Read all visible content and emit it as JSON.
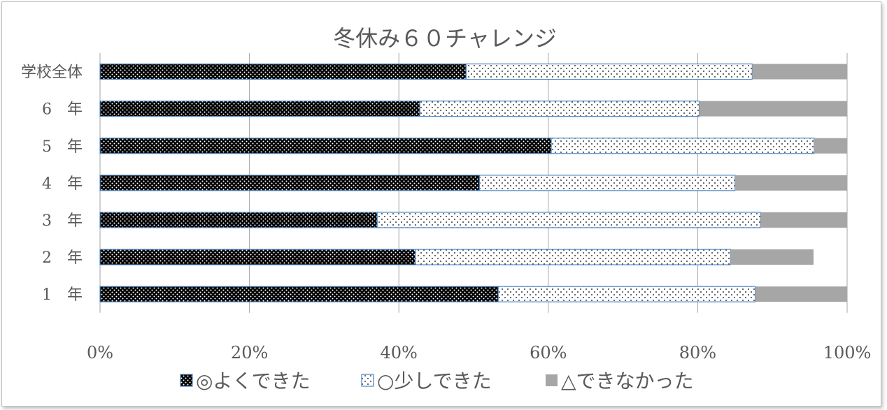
{
  "chart_data": {
    "type": "bar",
    "orientation": "horizontal",
    "stacked": "percent",
    "title": "冬休み６０チャレンジ",
    "categories": [
      "学校全体",
      "6　年",
      "5　年",
      "4　年",
      "3　年",
      "2　年",
      "1　年"
    ],
    "series": [
      {
        "name": "◎よくできた",
        "values": [
          49.0,
          42.8,
          60.4,
          50.8,
          37.1,
          42.2,
          53.3
        ]
      },
      {
        "name": "○少しできた",
        "values": [
          38.3,
          37.4,
          35.2,
          34.2,
          51.3,
          42.2,
          34.4
        ]
      },
      {
        "name": "△できなかった",
        "values": [
          12.7,
          19.8,
          4.4,
          15.0,
          11.6,
          11.1,
          12.3
        ]
      }
    ],
    "xlim": [
      0,
      100
    ],
    "xticks": [
      "0%",
      "20%",
      "40%",
      "60%",
      "80%",
      "100%"
    ],
    "grid": true,
    "legend": "bottom",
    "colors": {
      "series1": "#000000",
      "series2": "#ffffff",
      "series3": "#a6a6a6",
      "bar_border": "#4a86c8",
      "grid": "#a6a6a6"
    }
  }
}
